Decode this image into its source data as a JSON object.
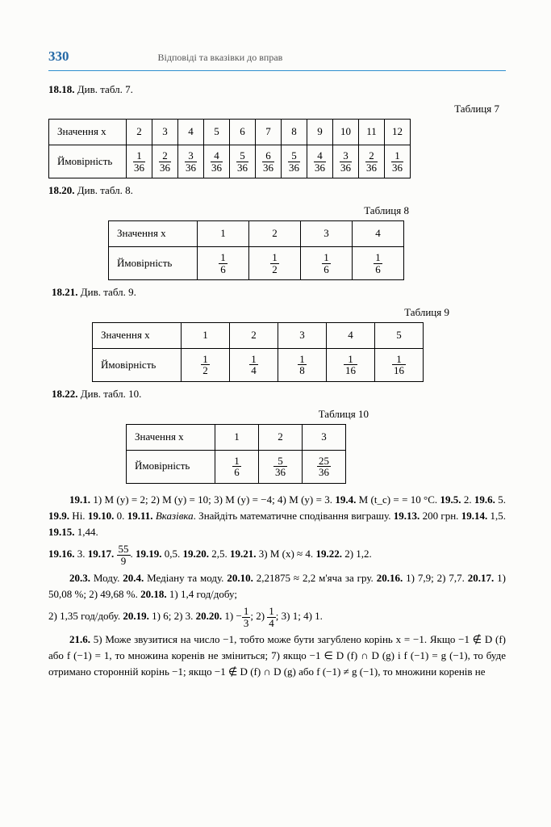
{
  "page_number": "330",
  "chapter_title": "Відповіді та вказівки до вправ",
  "line_18_18": {
    "nr": "18.18.",
    "txt": "Див. табл. 7."
  },
  "t7": {
    "caption": "Таблиця 7",
    "row1_h": "Значення x",
    "row2_h": "Ймовірність",
    "cols": [
      "2",
      "3",
      "4",
      "5",
      "6",
      "7",
      "8",
      "9",
      "10",
      "11",
      "12"
    ],
    "probs": [
      [
        "1",
        "36"
      ],
      [
        "2",
        "36"
      ],
      [
        "3",
        "36"
      ],
      [
        "4",
        "36"
      ],
      [
        "5",
        "36"
      ],
      [
        "6",
        "36"
      ],
      [
        "5",
        "36"
      ],
      [
        "4",
        "36"
      ],
      [
        "3",
        "36"
      ],
      [
        "2",
        "36"
      ],
      [
        "1",
        "36"
      ]
    ]
  },
  "line_18_20": {
    "nr": "18.20.",
    "txt": "Див. табл. 8."
  },
  "t8": {
    "caption": "Таблиця 8",
    "row1_h": "Значення x",
    "row2_h": "Ймовірність",
    "cols": [
      "1",
      "2",
      "3",
      "4"
    ],
    "probs": [
      [
        "1",
        "6"
      ],
      [
        "1",
        "2"
      ],
      [
        "1",
        "6"
      ],
      [
        "1",
        "6"
      ]
    ]
  },
  "line_18_21": {
    "nr": "18.21.",
    "txt": "Див. табл. 9."
  },
  "t9": {
    "caption": "Таблиця 9",
    "row1_h": "Значення x",
    "row2_h": "Ймовірність",
    "cols": [
      "1",
      "2",
      "3",
      "4",
      "5"
    ],
    "probs": [
      [
        "1",
        "2"
      ],
      [
        "1",
        "4"
      ],
      [
        "1",
        "8"
      ],
      [
        "1",
        "16"
      ],
      [
        "1",
        "16"
      ]
    ]
  },
  "line_18_22": {
    "nr": "18.22.",
    "txt": "Див. табл. 10."
  },
  "t10": {
    "caption": "Таблиця 10",
    "row1_h": "Значення x",
    "row2_h": "Ймовірність",
    "cols": [
      "1",
      "2",
      "3"
    ],
    "probs": [
      [
        "1",
        "6"
      ],
      [
        "5",
        "36"
      ],
      [
        "25",
        "36"
      ]
    ]
  },
  "p19a": "19.1. 1) M (y) = 2; 2) M (y) = 10; 3) M (y) = −4; 4) M (y) = 3. 19.4. M (t_c) = = 10 °C. 19.5. 2. 19.6. 5. 19.9. Ні. 19.10. 0. 19.11. Вказівка. Знайдіть математичне сподівання виграшу. 19.13. 200 грн. 19.14. 1,5. 19.15. 1,44.",
  "p19b_pre": "19.16. 3. 19.17. ",
  "p19b_frac": [
    "55",
    "9"
  ],
  "p19b_post": ". 19.19. 0,5. 19.20. 2,5. 19.21. 3) M (x) ≈ 4. 19.22. 2) 1,2.",
  "p20a": "20.3. Моду. 20.4. Медіану та моду. 20.10. 2,21875 ≈ 2,2 м'яча за гру. 20.16. 1) 7,9; 2) 7,7. 20.17. 1) 50,08 %; 2) 49,68 %. 20.18. 1) 1,4 год/добу;",
  "p20b_pre": "2) 1,35 год/добу. 20.19. 1) 6; 2) 3. 20.20. 1) −",
  "p20b_f1": [
    "1",
    "3"
  ],
  "p20b_mid": "; 2) ",
  "p20b_f2": [
    "1",
    "4"
  ],
  "p20b_post": "; 3) 1; 4) 1.",
  "p21": "21.6. 5) Може звузитися на число −1, тобто може бути загублено корінь x = −1. Якщо −1 ∉ D (f) або f (−1) = 1, то множина коренів не зміниться; 7) якщо −1 ∈ D (f) ∩ D (g) і f (−1) = g (−1), то буде отримано сторонній корінь −1; якщо −1 ∉ D (f) ∩ D (g) або f (−1) ≠ g (−1), то множини коренів не"
}
